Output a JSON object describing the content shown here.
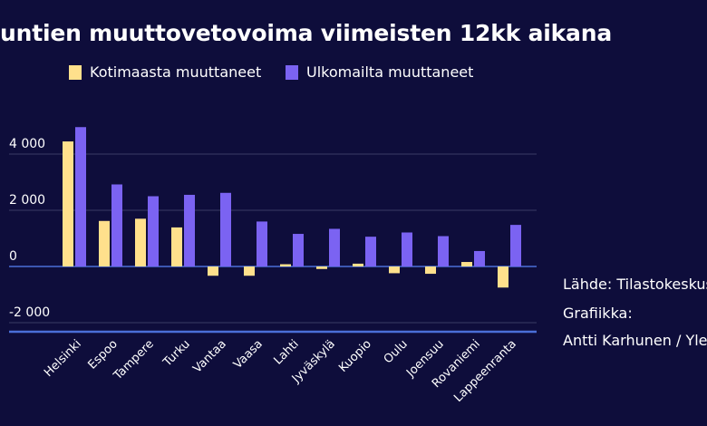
{
  "chart_data": {
    "type": "bar",
    "title": "untien muuttovetovoima viimeisten 12kk aikana",
    "categories": [
      "Helsinki",
      "Espoo",
      "Tampere",
      "Turku",
      "Vantaa",
      "Vaasa",
      "Lahti",
      "Jyväskylä",
      "Kuopio",
      "Oulu",
      "Joensuu",
      "Rovaniemi",
      "Lappeenranta"
    ],
    "series": [
      {
        "name": "Kotimaasta muuttaneet",
        "color": "#ffe08c",
        "values": [
          4450,
          1620,
          1700,
          1390,
          -330,
          -330,
          80,
          -90,
          100,
          -240,
          -260,
          160,
          -750
        ]
      },
      {
        "name": "Ulkomailta muuttaneet",
        "color": "#7b63f2",
        "values": [
          4960,
          2920,
          2500,
          2550,
          2620,
          1600,
          1160,
          1340,
          1060,
          1210,
          1080,
          550,
          1480
        ]
      }
    ],
    "y_ticks": [
      4000,
      2000,
      0,
      -2000
    ],
    "y_tick_labels": [
      "4 000",
      "2 000",
      "0",
      "-2 000"
    ],
    "ylim": [
      -2300,
      5200
    ],
    "xlabel": "",
    "ylabel": "",
    "legend_position": "top-left",
    "grid": true
  },
  "source": {
    "line1": "Lähde: Tilastokeskus",
    "line2": "Grafiikka:",
    "line3": "Antti Karhunen / Yle"
  },
  "colors": {
    "background": "#0e0d3b",
    "grid": "#3a3a66",
    "axis": "#4a6fd8"
  }
}
